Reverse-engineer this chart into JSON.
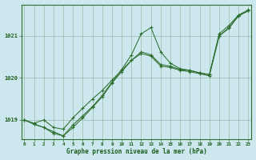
{
  "bg_color": "#cce8ee",
  "plot_bg": "#cce8ee",
  "grid_color": "#99bbaa",
  "line_color": "#2d6e2d",
  "marker_color": "#2d6e2d",
  "title": "Graphe pression niveau de la mer (hPa)",
  "hours": [
    0,
    1,
    2,
    3,
    4,
    5,
    6,
    7,
    8,
    9,
    10,
    11,
    12,
    13,
    14,
    15,
    16,
    17,
    18,
    19,
    20,
    21,
    22,
    23
  ],
  "yticks": [
    1019,
    1020,
    1021
  ],
  "ylim": [
    1018.55,
    1021.75
  ],
  "xlim": [
    -0.3,
    23.3
  ],
  "series": [
    [
      1019.0,
      1018.92,
      1019.0,
      1018.82,
      1018.78,
      1019.05,
      1019.28,
      1019.5,
      1019.7,
      1019.95,
      1020.18,
      1020.42,
      1020.62,
      1020.55,
      1020.32,
      1020.28,
      1020.2,
      1020.18,
      1020.12,
      1020.08,
      1021.0,
      1021.2,
      1021.48,
      1021.6
    ],
    [
      1019.0,
      1018.9,
      1018.82,
      1018.68,
      1018.62,
      1018.88,
      1019.1,
      1019.32,
      1019.58,
      1019.9,
      1020.2,
      1020.55,
      1021.05,
      1021.2,
      1020.62,
      1020.35,
      1020.22,
      1020.18,
      1020.12,
      1020.08,
      1021.05,
      1021.25,
      1021.5,
      1021.62
    ],
    [
      1019.0,
      1018.9,
      1018.82,
      1018.72,
      1018.62,
      1018.82,
      1019.05,
      1019.3,
      1019.55,
      1019.88,
      1020.15,
      1020.42,
      1020.58,
      1020.52,
      1020.28,
      1020.25,
      1020.18,
      1020.15,
      1020.1,
      1020.05,
      1021.0,
      1021.18,
      1021.48,
      1021.6
    ]
  ]
}
